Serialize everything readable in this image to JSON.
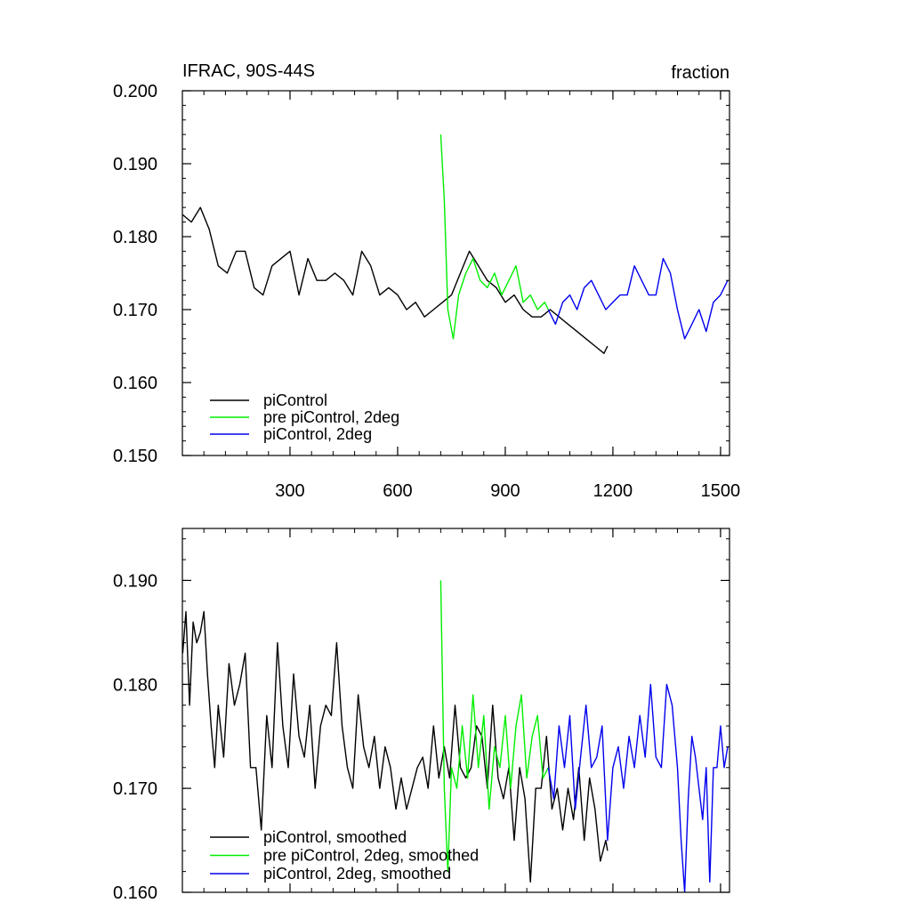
{
  "chart_data": [
    {
      "type": "line",
      "title": "IFRAC, 90S-44S",
      "units_label": "fraction",
      "xlim": [
        0,
        1525
      ],
      "ylim": [
        0.15,
        0.2
      ],
      "x_ticks": [
        300,
        600,
        900,
        1200,
        1500
      ],
      "x_tick_labels": [
        "300",
        "600",
        "900",
        "1200",
        "1500"
      ],
      "y_ticks": [
        0.15,
        0.16,
        0.17,
        0.18,
        0.19,
        0.2
      ],
      "y_tick_labels": [
        "0.150",
        "0.160",
        "0.170",
        "0.180",
        "0.190",
        "0.200"
      ],
      "legend_position": "bottom-left",
      "series": [
        {
          "name": "piControl",
          "color": "#000000",
          "x": [
            1,
            25,
            50,
            75,
            100,
            125,
            150,
            175,
            200,
            225,
            250,
            275,
            300,
            325,
            350,
            375,
            400,
            425,
            450,
            475,
            500,
            525,
            550,
            575,
            600,
            625,
            650,
            675,
            700,
            725,
            750,
            775,
            800,
            825,
            850,
            875,
            900,
            925,
            950,
            975,
            1000,
            1025,
            1050,
            1075,
            1100,
            1125,
            1150,
            1175,
            1185
          ],
          "values": [
            0.183,
            0.182,
            0.184,
            0.181,
            0.176,
            0.175,
            0.178,
            0.178,
            0.173,
            0.172,
            0.176,
            0.177,
            0.178,
            0.172,
            0.177,
            0.174,
            0.174,
            0.175,
            0.174,
            0.172,
            0.178,
            0.176,
            0.172,
            0.173,
            0.172,
            0.17,
            0.171,
            0.169,
            0.17,
            0.171,
            0.172,
            0.175,
            0.178,
            0.176,
            0.174,
            0.173,
            0.171,
            0.172,
            0.17,
            0.169,
            0.169,
            0.17,
            0.169,
            0.168,
            0.167,
            0.166,
            0.165,
            0.164,
            0.165
          ]
        },
        {
          "name": "pre piControl, 2deg",
          "color": "#00ee00",
          "x": [
            720,
            730,
            740,
            755,
            770,
            790,
            810,
            830,
            850,
            870,
            890,
            910,
            930,
            950,
            970,
            990,
            1010,
            1020
          ],
          "values": [
            0.194,
            0.185,
            0.17,
            0.166,
            0.172,
            0.175,
            0.177,
            0.174,
            0.173,
            0.175,
            0.172,
            0.174,
            0.176,
            0.171,
            0.172,
            0.17,
            0.171,
            0.17
          ]
        },
        {
          "name": "piControl, 2deg",
          "color": "#0000ee",
          "x": [
            1020,
            1040,
            1060,
            1080,
            1100,
            1120,
            1140,
            1160,
            1180,
            1200,
            1220,
            1240,
            1260,
            1280,
            1300,
            1320,
            1340,
            1360,
            1380,
            1400,
            1420,
            1440,
            1460,
            1480,
            1500,
            1520
          ],
          "values": [
            0.17,
            0.168,
            0.171,
            0.172,
            0.17,
            0.173,
            0.174,
            0.172,
            0.17,
            0.171,
            0.172,
            0.172,
            0.176,
            0.174,
            0.172,
            0.172,
            0.177,
            0.175,
            0.17,
            0.166,
            0.168,
            0.17,
            0.167,
            0.171,
            0.172,
            0.174
          ]
        }
      ]
    },
    {
      "type": "line",
      "xlim": [
        0,
        1525
      ],
      "ylim": [
        0.16,
        0.195
      ],
      "x_ticks": [
        300,
        600,
        900,
        1200,
        1500
      ],
      "y_ticks": [
        0.16,
        0.17,
        0.18,
        0.19
      ],
      "y_tick_labels": [
        "0.160",
        "0.170",
        "0.180",
        "0.190"
      ],
      "legend_position": "bottom-left",
      "series": [
        {
          "name": "piControl, smoothed",
          "color": "#000000",
          "x": [
            1,
            10,
            20,
            30,
            40,
            50,
            60,
            70,
            80,
            90,
            100,
            115,
            130,
            145,
            160,
            175,
            190,
            205,
            220,
            235,
            250,
            265,
            280,
            295,
            310,
            325,
            340,
            355,
            370,
            385,
            400,
            415,
            430,
            445,
            460,
            475,
            490,
            505,
            520,
            535,
            550,
            565,
            580,
            595,
            610,
            625,
            640,
            655,
            670,
            685,
            700,
            715,
            730,
            745,
            760,
            775,
            790,
            805,
            820,
            835,
            850,
            865,
            880,
            895,
            910,
            925,
            940,
            955,
            970,
            985,
            1000,
            1015,
            1030,
            1045,
            1060,
            1075,
            1090,
            1105,
            1120,
            1135,
            1150,
            1165,
            1180,
            1185
          ],
          "values": [
            0.183,
            0.187,
            0.178,
            0.186,
            0.184,
            0.185,
            0.187,
            0.181,
            0.176,
            0.172,
            0.178,
            0.173,
            0.182,
            0.178,
            0.18,
            0.183,
            0.172,
            0.172,
            0.166,
            0.177,
            0.172,
            0.184,
            0.176,
            0.172,
            0.181,
            0.175,
            0.173,
            0.178,
            0.17,
            0.176,
            0.178,
            0.177,
            0.184,
            0.176,
            0.172,
            0.17,
            0.179,
            0.174,
            0.172,
            0.175,
            0.17,
            0.174,
            0.172,
            0.168,
            0.171,
            0.168,
            0.17,
            0.172,
            0.173,
            0.17,
            0.176,
            0.171,
            0.174,
            0.171,
            0.178,
            0.172,
            0.171,
            0.172,
            0.176,
            0.175,
            0.17,
            0.178,
            0.171,
            0.169,
            0.172,
            0.165,
            0.172,
            0.169,
            0.161,
            0.17,
            0.17,
            0.175,
            0.168,
            0.17,
            0.166,
            0.17,
            0.167,
            0.172,
            0.165,
            0.171,
            0.168,
            0.163,
            0.165,
            0.164
          ]
        },
        {
          "name": "pre piControl, 2deg, smoothed",
          "color": "#00ee00",
          "x": [
            720,
            730,
            740,
            750,
            765,
            780,
            795,
            810,
            825,
            840,
            855,
            870,
            885,
            900,
            915,
            930,
            945,
            960,
            975,
            990,
            1005,
            1020
          ],
          "values": [
            0.19,
            0.17,
            0.162,
            0.172,
            0.17,
            0.176,
            0.171,
            0.179,
            0.172,
            0.177,
            0.168,
            0.174,
            0.172,
            0.177,
            0.17,
            0.176,
            0.179,
            0.171,
            0.175,
            0.177,
            0.171,
            0.172
          ]
        },
        {
          "name": "piControl, 2deg, smoothed",
          "color": "#0000ee",
          "x": [
            1020,
            1035,
            1050,
            1065,
            1080,
            1095,
            1110,
            1125,
            1140,
            1155,
            1170,
            1185,
            1200,
            1215,
            1230,
            1245,
            1260,
            1275,
            1290,
            1305,
            1320,
            1335,
            1350,
            1365,
            1380,
            1390,
            1400,
            1410,
            1420,
            1430,
            1440,
            1450,
            1460,
            1470,
            1480,
            1490,
            1500,
            1510,
            1520
          ],
          "values": [
            0.172,
            0.169,
            0.176,
            0.172,
            0.177,
            0.168,
            0.173,
            0.178,
            0.172,
            0.173,
            0.176,
            0.165,
            0.172,
            0.174,
            0.17,
            0.175,
            0.172,
            0.177,
            0.173,
            0.18,
            0.173,
            0.172,
            0.18,
            0.178,
            0.172,
            0.165,
            0.16,
            0.169,
            0.175,
            0.173,
            0.17,
            0.167,
            0.172,
            0.161,
            0.172,
            0.172,
            0.176,
            0.172,
            0.174
          ]
        }
      ]
    }
  ]
}
